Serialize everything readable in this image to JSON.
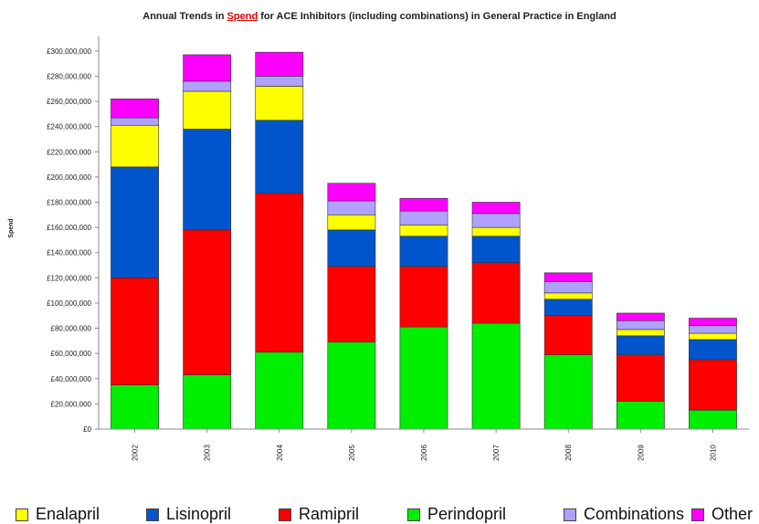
{
  "chart_data": {
    "type": "bar",
    "stacked": true,
    "title_parts": [
      "Annual Trends in ",
      "Spend",
      " for ACE Inhibitors (including combinations) in General Practice in England"
    ],
    "ylabel": "Spend",
    "xlabel": "",
    "ylim": [
      0,
      310000000
    ],
    "yticks": [
      "£0",
      "£20,000,000",
      "£40,000,000",
      "£60,000,000",
      "£80,000,000",
      "£100,000,000",
      "£120,000,000",
      "£140,000,000",
      "£160,000,000",
      "£180,000,000",
      "£200,000,000",
      "£220,000,000",
      "£240,000,000",
      "£260,000,000",
      "£280,000,000",
      "£300,000,000"
    ],
    "ytick_values": [
      0,
      20000000,
      40000000,
      60000000,
      80000000,
      100000000,
      120000000,
      140000000,
      160000000,
      180000000,
      200000000,
      220000000,
      240000000,
      260000000,
      280000000,
      300000000
    ],
    "categories": [
      "2002",
      "2003",
      "2004",
      "2005",
      "2006",
      "2007",
      "2008",
      "2009",
      "2010"
    ],
    "grid": false,
    "legend_position": "bottom",
    "series": [
      {
        "name": "Perindopril",
        "color": "#00ee00",
        "values": [
          35000000,
          43000000,
          61000000,
          69000000,
          81000000,
          84000000,
          59000000,
          22000000,
          15000000
        ]
      },
      {
        "name": "Ramipril",
        "color": "#ff0000",
        "values": [
          85000000,
          115000000,
          126000000,
          60000000,
          48000000,
          48000000,
          31000000,
          37000000,
          40000000
        ]
      },
      {
        "name": "Lisinopril",
        "color": "#0055cc",
        "values": [
          88000000,
          80000000,
          58000000,
          29000000,
          24000000,
          21000000,
          13000000,
          15000000,
          16000000
        ]
      },
      {
        "name": "Enalapril",
        "color": "#ffff00",
        "values": [
          33000000,
          30000000,
          27000000,
          12000000,
          9000000,
          7000000,
          5000000,
          5000000,
          5000000
        ]
      },
      {
        "name": "Combinations",
        "color": "#b0a0ff",
        "values": [
          6000000,
          8000000,
          8000000,
          11000000,
          11000000,
          11000000,
          9000000,
          7000000,
          6000000
        ]
      },
      {
        "name": "Other",
        "color": "#ff00ff",
        "values": [
          15000000,
          21000000,
          19000000,
          14000000,
          10000000,
          9000000,
          7000000,
          6000000,
          6000000
        ]
      }
    ],
    "legend_order": [
      "Enalapril",
      "Lisinopril",
      "Ramipril",
      "Perindopril",
      "Combinations",
      "Other"
    ]
  }
}
